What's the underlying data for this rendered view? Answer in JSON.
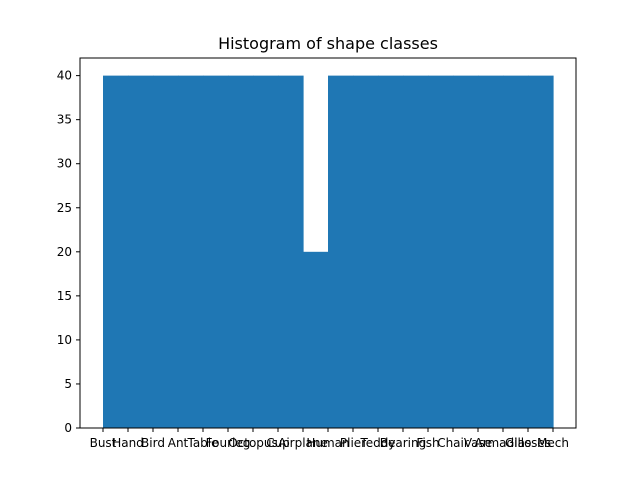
{
  "chart_data": {
    "type": "bar",
    "title": "Histogram of shape classes",
    "xlabel": "",
    "ylabel": "",
    "categories": [
      "Bust",
      "Hand",
      "Bird",
      "Ant",
      "Table",
      "Fourleg",
      "Octopus",
      "Cup",
      "Airplane",
      "Human",
      "Plier",
      "Teddy",
      "Bearing",
      "Fish",
      "Chair",
      "Vase",
      "Armadillo",
      "Glasses",
      "Mech"
    ],
    "values": [
      40,
      40,
      40,
      40,
      40,
      40,
      40,
      40,
      20,
      40,
      40,
      40,
      40,
      40,
      40,
      40,
      40,
      40,
      40
    ],
    "ylim": [
      0,
      42
    ],
    "yticks": [
      0,
      5,
      10,
      15,
      20,
      25,
      30,
      35,
      40
    ],
    "bar_color": "#1f77b4",
    "grid": false,
    "legend": "none"
  }
}
